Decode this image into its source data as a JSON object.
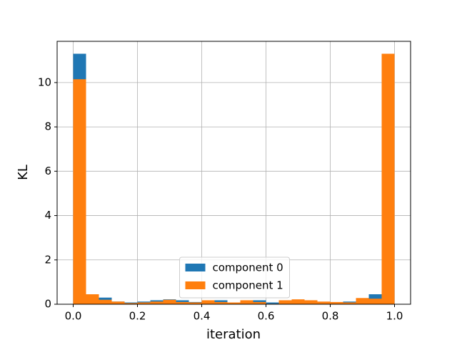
{
  "chart_data": {
    "type": "histogram",
    "xlabel": "iteration",
    "ylabel": "KL",
    "bins": [
      0,
      0.04,
      0.08,
      0.12,
      0.16,
      0.2,
      0.24,
      0.28,
      0.32,
      0.36,
      0.4,
      0.44,
      0.48,
      0.52,
      0.56,
      0.6,
      0.64,
      0.68,
      0.72,
      0.76,
      0.8,
      0.84,
      0.88,
      0.92,
      0.96,
      1
    ],
    "series": [
      {
        "name": "component 0",
        "color": "#1f77b4",
        "values": [
          11.3,
          0.4,
          0.3,
          0.12,
          0.08,
          0.12,
          0.18,
          0.22,
          0.18,
          0.1,
          0.15,
          0.18,
          0.08,
          0.15,
          0.18,
          0.08,
          0.15,
          0.2,
          0.15,
          0.1,
          0.08,
          0.12,
          0.2,
          0.45,
          0.2
        ]
      },
      {
        "name": "component 1",
        "color": "#ff7f0e",
        "values": [
          10.15,
          0.45,
          0.2,
          0.12,
          0.05,
          0.08,
          0.12,
          0.2,
          0.1,
          0.08,
          0.18,
          0.1,
          0.08,
          0.18,
          0.1,
          0.02,
          0.18,
          0.22,
          0.18,
          0.12,
          0.1,
          0.08,
          0.28,
          0.25,
          11.3
        ]
      }
    ],
    "xlim": [
      -0.05,
      1.05
    ],
    "xticks": [
      {
        "value": 0,
        "label": "0.0"
      },
      0.2,
      0.4,
      0.6,
      0.8,
      {
        "value": 1,
        "label": "1.0"
      }
    ],
    "ylim": [
      0,
      11.86
    ],
    "yticks": [
      0,
      2,
      4,
      6,
      8,
      10
    ],
    "grid": true,
    "legend": "lower center"
  }
}
